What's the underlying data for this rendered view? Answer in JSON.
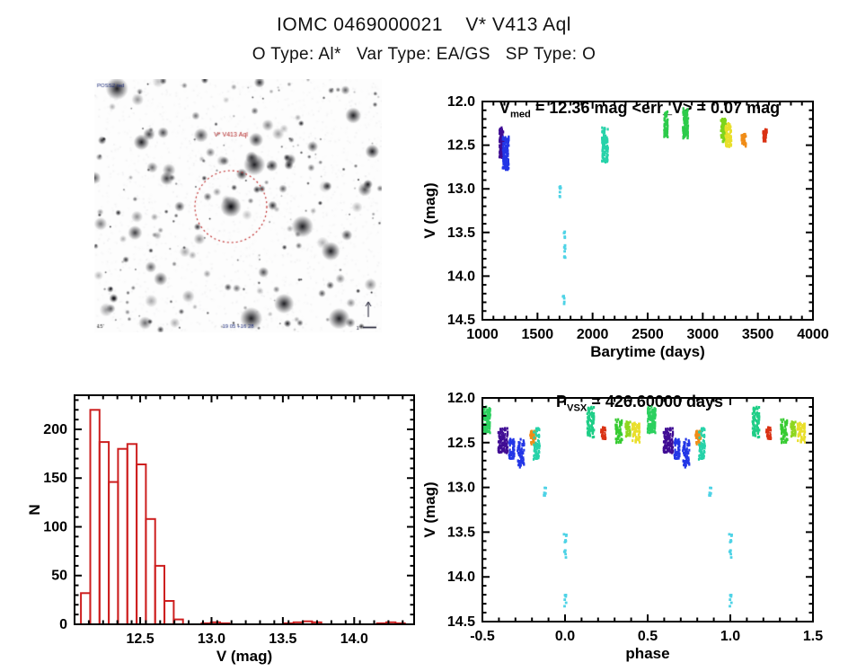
{
  "header": {
    "title": "IOMC 0469000021    V* V413 Aql",
    "subtitle": "O Type: Al*   Var Type: EA/GS   SP Type: O"
  },
  "finding_chart": {
    "target_label": "V* V413 Aql",
    "corner_text_top_left": "POSS2 red",
    "corner_text_bottom_left": "15'",
    "corner_text_bottom_center": "19 05 +16 28",
    "scale_label": "1'",
    "circle_color": "#c03030",
    "label_color": "#b02020"
  },
  "chart_data": [
    {
      "id": "lightcurve",
      "type": "scatter",
      "title_prefix": "V",
      "title_sub": "med",
      "title_rest": " = 12.36 mag <err_V> = 0.07 mag",
      "xlabel": "Barytime (days)",
      "ylabel": "V (mag)",
      "xlim": [
        1000,
        4000
      ],
      "ylim": [
        12.0,
        14.5
      ],
      "y_inverted": true,
      "xticks": [
        1000,
        1500,
        2000,
        2500,
        3000,
        3500,
        4000
      ],
      "xtick_labels": [
        "1000",
        "1500",
        "2000",
        "2500",
        "3000",
        "3500",
        "4000"
      ],
      "yticks": [
        12.0,
        12.5,
        13.0,
        13.5,
        14.0,
        14.5
      ],
      "ytick_labels": [
        "12.0",
        "12.5",
        "13.0",
        "13.5",
        "14.0",
        "14.5"
      ],
      "x_minor_step": 100,
      "y_minor_step": 0.1,
      "grid": false,
      "clusters": [
        {
          "x0": 1155,
          "x1": 1192,
          "v0": 12.3,
          "v1": 12.645,
          "color": "#400d94",
          "n": 100,
          "seed": 101
        },
        {
          "x0": 1185,
          "x1": 1240,
          "v0": 12.4,
          "v1": 12.78,
          "color": "#2336e6",
          "n": 120,
          "seed": 102
        },
        {
          "x0": 1700,
          "x1": 1715,
          "v0": 12.97,
          "v1": 13.1,
          "color": "#4ed3e6",
          "n": 7,
          "seed": 103,
          "sparse": true
        },
        {
          "x0": 1738,
          "x1": 1752,
          "v0": 13.49,
          "v1": 13.8,
          "color": "#4ed3e6",
          "n": 13,
          "seed": 104,
          "sparse": true
        },
        {
          "x0": 1730,
          "x1": 1744,
          "v0": 14.19,
          "v1": 14.33,
          "color": "#4ed3e6",
          "n": 6,
          "seed": 105,
          "sparse": true
        },
        {
          "x0": 2085,
          "x1": 2140,
          "v0": 12.3,
          "v1": 12.7,
          "color": "#27d2a9",
          "n": 110,
          "seed": 106
        },
        {
          "x0": 2650,
          "x1": 2682,
          "v0": 12.1,
          "v1": 12.42,
          "color": "#2ccb4a",
          "n": 70,
          "seed": 107
        },
        {
          "x0": 2820,
          "x1": 2868,
          "v0": 12.08,
          "v1": 12.42,
          "color": "#2ccb4a",
          "n": 95,
          "seed": 108
        },
        {
          "x0": 3165,
          "x1": 3215,
          "v0": 12.2,
          "v1": 12.47,
          "color": "#7ed41c",
          "n": 80,
          "seed": 109
        },
        {
          "x0": 3205,
          "x1": 3260,
          "v0": 12.25,
          "v1": 12.52,
          "color": "#e9df2b",
          "n": 80,
          "seed": 110
        },
        {
          "x0": 3350,
          "x1": 3392,
          "v0": 12.37,
          "v1": 12.52,
          "color": "#f08c16",
          "n": 40,
          "seed": 111
        },
        {
          "x0": 3545,
          "x1": 3582,
          "v0": 12.32,
          "v1": 12.46,
          "color": "#da3214",
          "n": 45,
          "seed": 112
        }
      ]
    },
    {
      "id": "histogram",
      "type": "bar",
      "xlabel": "V (mag)",
      "ylabel": "N",
      "xlim": [
        12.04,
        14.42
      ],
      "ylim": [
        0,
        235
      ],
      "xticks": [
        12.5,
        13.0,
        13.5,
        14.0
      ],
      "xtick_labels": [
        "12.5",
        "13.0",
        "13.5",
        "14.0"
      ],
      "yticks": [
        0,
        50,
        100,
        150,
        200
      ],
      "ytick_labels": [
        "0",
        "50",
        "100",
        "150",
        "200"
      ],
      "x_minor_step": 0.1,
      "y_minor_step": 10,
      "grid": false,
      "bar_color": "#cd1f1f",
      "bin_width": 0.065,
      "bins": [
        {
          "left": 12.085,
          "count": 32
        },
        {
          "left": 12.15,
          "count": 220
        },
        {
          "left": 12.215,
          "count": 187
        },
        {
          "left": 12.28,
          "count": 146
        },
        {
          "left": 12.345,
          "count": 180
        },
        {
          "left": 12.41,
          "count": 185
        },
        {
          "left": 12.475,
          "count": 164
        },
        {
          "left": 12.54,
          "count": 108
        },
        {
          "left": 12.605,
          "count": 60
        },
        {
          "left": 12.67,
          "count": 24
        },
        {
          "left": 12.735,
          "count": 5
        },
        {
          "left": 12.93,
          "count": 1
        },
        {
          "left": 12.995,
          "count": 2
        },
        {
          "left": 13.06,
          "count": 1
        },
        {
          "left": 13.51,
          "count": 1
        },
        {
          "left": 13.575,
          "count": 2
        },
        {
          "left": 13.64,
          "count": 3
        },
        {
          "left": 13.705,
          "count": 2
        },
        {
          "left": 14.16,
          "count": 1
        },
        {
          "left": 14.225,
          "count": 2
        },
        {
          "left": 14.29,
          "count": 1
        }
      ]
    },
    {
      "id": "phase",
      "type": "scatter",
      "title_prefix": "P",
      "title_sub": "VSX",
      "title_rest": " = 426.60000 days",
      "xlabel": "phase",
      "ylabel": "V (mag)",
      "xlim": [
        -0.5,
        1.5
      ],
      "ylim": [
        12.0,
        14.5
      ],
      "y_inverted": true,
      "xticks": [
        -0.5,
        0.0,
        0.5,
        1.0,
        1.5
      ],
      "xtick_labels": [
        "-0.5",
        "0.0",
        "0.5",
        "1.0",
        "1.5"
      ],
      "yticks": [
        12.0,
        12.5,
        13.0,
        13.5,
        14.0,
        14.5
      ],
      "ytick_labels": [
        "12.0",
        "12.5",
        "13.0",
        "13.5",
        "14.0",
        "14.5"
      ],
      "x_minor_step": 0.1,
      "y_minor_step": 0.1,
      "grid": false,
      "clusters": [
        {
          "x0": -0.5,
          "x1": -0.452,
          "v0": 12.1,
          "v1": 12.39,
          "color": "#2bd05e",
          "n": 110,
          "seed": 201
        },
        {
          "x0": 0.5,
          "x1": 0.548,
          "v0": 12.1,
          "v1": 12.39,
          "color": "#2bd05e",
          "n": 110,
          "seed": 201
        },
        {
          "x0": -0.405,
          "x1": -0.347,
          "v0": 12.33,
          "v1": 12.615,
          "color": "#400d94",
          "n": 95,
          "seed": 202
        },
        {
          "x0": 0.595,
          "x1": 0.653,
          "v0": 12.33,
          "v1": 12.615,
          "color": "#400d94",
          "n": 95,
          "seed": 202
        },
        {
          "x0": -0.338,
          "x1": -0.307,
          "v0": 12.46,
          "v1": 12.68,
          "color": "#2336e6",
          "n": 55,
          "seed": 203
        },
        {
          "x0": 0.662,
          "x1": 0.693,
          "v0": 12.46,
          "v1": 12.68,
          "color": "#2336e6",
          "n": 55,
          "seed": 203
        },
        {
          "x0": -0.287,
          "x1": -0.247,
          "v0": 12.46,
          "v1": 12.78,
          "color": "#2336e6",
          "n": 60,
          "seed": 204
        },
        {
          "x0": 0.713,
          "x1": 0.753,
          "v0": 12.46,
          "v1": 12.78,
          "color": "#2336e6",
          "n": 60,
          "seed": 204
        },
        {
          "x0": -0.212,
          "x1": -0.178,
          "v0": 12.37,
          "v1": 12.53,
          "color": "#f08c16",
          "n": 38,
          "seed": 205
        },
        {
          "x0": 0.788,
          "x1": 0.822,
          "v0": 12.37,
          "v1": 12.53,
          "color": "#f08c16",
          "n": 38,
          "seed": 205
        },
        {
          "x0": -0.19,
          "x1": -0.153,
          "v0": 12.33,
          "v1": 12.69,
          "color": "#27d2a9",
          "n": 60,
          "seed": 206
        },
        {
          "x0": 0.81,
          "x1": 0.847,
          "v0": 12.33,
          "v1": 12.69,
          "color": "#27d2a9",
          "n": 60,
          "seed": 206
        },
        {
          "x0": -0.128,
          "x1": -0.116,
          "v0": 12.97,
          "v1": 13.1,
          "color": "#4ed3e6",
          "n": 7,
          "seed": 207,
          "sparse": true
        },
        {
          "x0": 0.872,
          "x1": 0.884,
          "v0": 12.97,
          "v1": 13.1,
          "color": "#4ed3e6",
          "n": 7,
          "seed": 207,
          "sparse": true
        },
        {
          "x0": -0.006,
          "x1": 0.008,
          "v0": 13.49,
          "v1": 13.8,
          "color": "#4ed3e6",
          "n": 13,
          "seed": 208,
          "sparse": true
        },
        {
          "x0": 0.994,
          "x1": 1.008,
          "v0": 13.49,
          "v1": 13.8,
          "color": "#4ed3e6",
          "n": 13,
          "seed": 208,
          "sparse": true
        },
        {
          "x0": -0.004,
          "x1": 0.007,
          "v0": 14.19,
          "v1": 14.33,
          "color": "#4ed3e6",
          "n": 6,
          "seed": 209,
          "sparse": true
        },
        {
          "x0": 0.996,
          "x1": 1.007,
          "v0": 14.19,
          "v1": 14.33,
          "color": "#4ed3e6",
          "n": 6,
          "seed": 209,
          "sparse": true
        },
        {
          "x0": 0.134,
          "x1": 0.176,
          "v0": 12.1,
          "v1": 12.44,
          "color": "#1fce87",
          "n": 80,
          "seed": 210
        },
        {
          "x0": 1.134,
          "x1": 1.176,
          "v0": 12.1,
          "v1": 12.44,
          "color": "#1fce87",
          "n": 80,
          "seed": 210
        },
        {
          "x0": 0.216,
          "x1": 0.246,
          "v0": 12.33,
          "v1": 12.47,
          "color": "#da3214",
          "n": 32,
          "seed": 211
        },
        {
          "x0": 1.216,
          "x1": 1.246,
          "v0": 12.33,
          "v1": 12.47,
          "color": "#da3214",
          "n": 32,
          "seed": 211
        },
        {
          "x0": 0.306,
          "x1": 0.346,
          "v0": 12.24,
          "v1": 12.5,
          "color": "#36cb31",
          "n": 60,
          "seed": 212
        },
        {
          "x0": 1.306,
          "x1": 1.346,
          "v0": 12.24,
          "v1": 12.5,
          "color": "#36cb31",
          "n": 60,
          "seed": 212
        },
        {
          "x0": 0.366,
          "x1": 0.396,
          "v0": 12.26,
          "v1": 12.43,
          "color": "#8ed61e",
          "n": 38,
          "seed": 213
        },
        {
          "x0": 1.366,
          "x1": 1.396,
          "v0": 12.26,
          "v1": 12.43,
          "color": "#8ed61e",
          "n": 38,
          "seed": 213
        },
        {
          "x0": 0.406,
          "x1": 0.452,
          "v0": 12.28,
          "v1": 12.5,
          "color": "#e9df2b",
          "n": 60,
          "seed": 214
        },
        {
          "x0": 1.406,
          "x1": 1.452,
          "v0": 12.28,
          "v1": 12.5,
          "color": "#e9df2b",
          "n": 60,
          "seed": 214
        }
      ]
    }
  ]
}
